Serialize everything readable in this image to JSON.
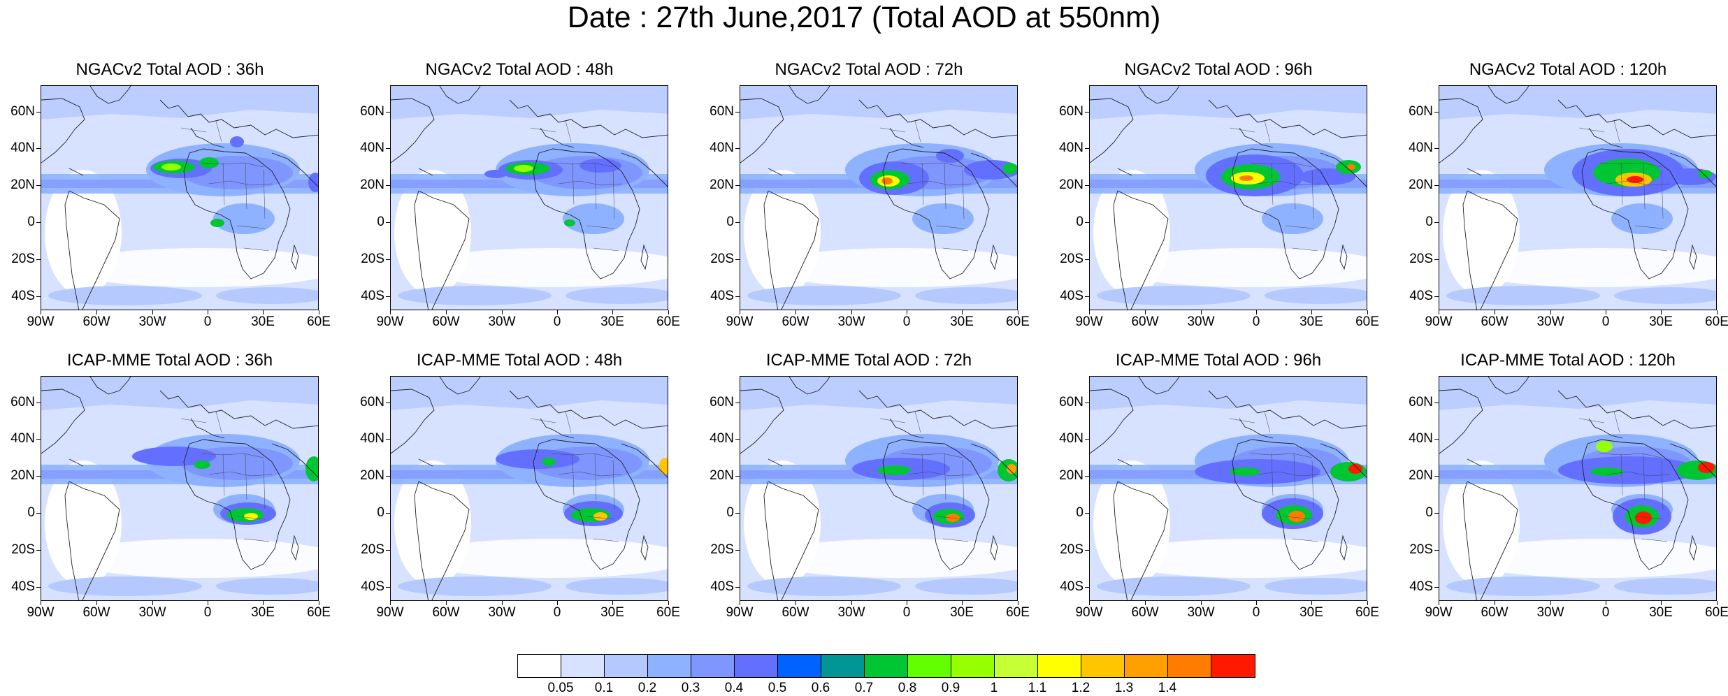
{
  "title": "Date : 27th June,2017 (Total AOD at 550nm)",
  "lat_labels": [
    "60N",
    "40N",
    "20N",
    "0",
    "20S",
    "40S"
  ],
  "lon_labels": [
    "90W",
    "60W",
    "30W",
    "0",
    "30E",
    "60E"
  ],
  "panels": [
    {
      "title": "NGACv2 Total AOD : 36h"
    },
    {
      "title": "NGACv2 Total AOD : 48h"
    },
    {
      "title": "NGACv2 Total AOD : 72h"
    },
    {
      "title": "NGACv2 Total AOD : 96h"
    },
    {
      "title": "NGACv2 Total AOD : 120h"
    },
    {
      "title": "ICAP-MME Total AOD : 36h"
    },
    {
      "title": "ICAP-MME Total AOD : 48h"
    },
    {
      "title": "ICAP-MME Total AOD : 72h"
    },
    {
      "title": "ICAP-MME Total AOD : 96h"
    },
    {
      "title": "ICAP-MME Total AOD : 120h"
    }
  ],
  "colorbar": {
    "colors": [
      "#ffffff",
      "#d6e2ff",
      "#b5c9ff",
      "#8eb2ff",
      "#7f96ff",
      "#6370ff",
      "#0063ff",
      "#009696",
      "#00c633",
      "#63ff00",
      "#96ff00",
      "#c6ff33",
      "#ffff00",
      "#ffc600",
      "#ffa000",
      "#ff7c00",
      "#ff1900"
    ],
    "labels": [
      "0.05",
      "0.1",
      "0.2",
      "0.3",
      "0.4",
      "0.5",
      "0.6",
      "0.7",
      "0.8",
      "0.9",
      "1",
      "1.1",
      "1.2",
      "1.3",
      "1.4"
    ]
  }
}
